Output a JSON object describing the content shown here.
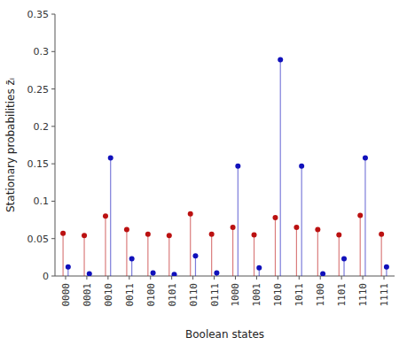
{
  "chart_data": {
    "type": "lollipop",
    "categories": [
      "0000",
      "0001",
      "0010",
      "0011",
      "0100",
      "0101",
      "0110",
      "0111",
      "1000",
      "1001",
      "1010",
      "1011",
      "1100",
      "1101",
      "1110",
      "1111"
    ],
    "series": [
      {
        "color": "#bb1111",
        "values": [
          0.057,
          0.054,
          0.08,
          0.062,
          0.056,
          0.054,
          0.083,
          0.056,
          0.065,
          0.055,
          0.078,
          0.065,
          0.062,
          0.055,
          0.081,
          0.056
        ]
      },
      {
        "color": "#1111bb",
        "values": [
          0.012,
          0.003,
          0.158,
          0.023,
          0.004,
          0.002,
          0.027,
          0.004,
          0.147,
          0.011,
          0.289,
          0.147,
          0.003,
          0.023,
          0.158,
          0.012
        ]
      }
    ],
    "xlabel": "Boolean states",
    "ylabel": "Stationary probabilities z̄ᵢ",
    "ylim": [
      0,
      0.35
    ],
    "yticks": [
      0,
      0.05,
      0.1,
      0.15,
      0.2,
      0.25,
      0.3,
      0.35
    ],
    "grid": false
  }
}
